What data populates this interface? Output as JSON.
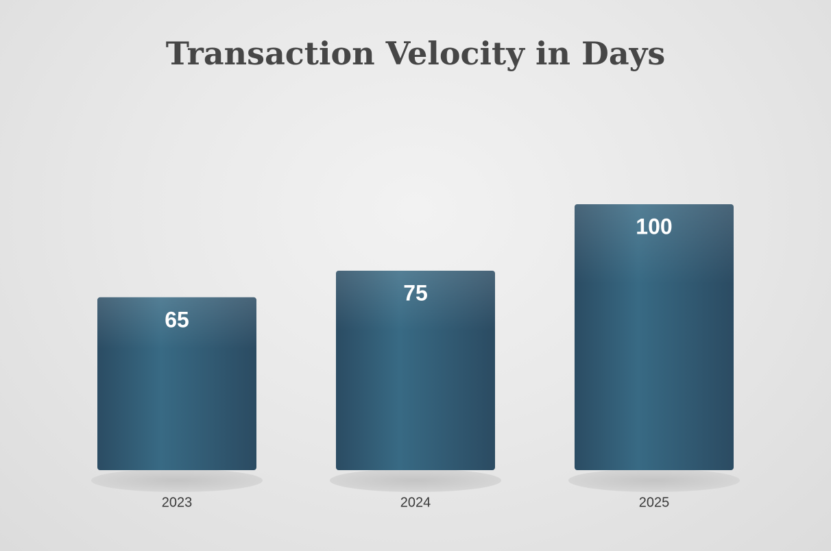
{
  "chart_data": {
    "type": "bar",
    "title": "Transaction Velocity in Days",
    "categories": [
      "2023",
      "2024",
      "2025"
    ],
    "values": [
      65,
      75,
      100
    ],
    "color": "#336580"
  }
}
